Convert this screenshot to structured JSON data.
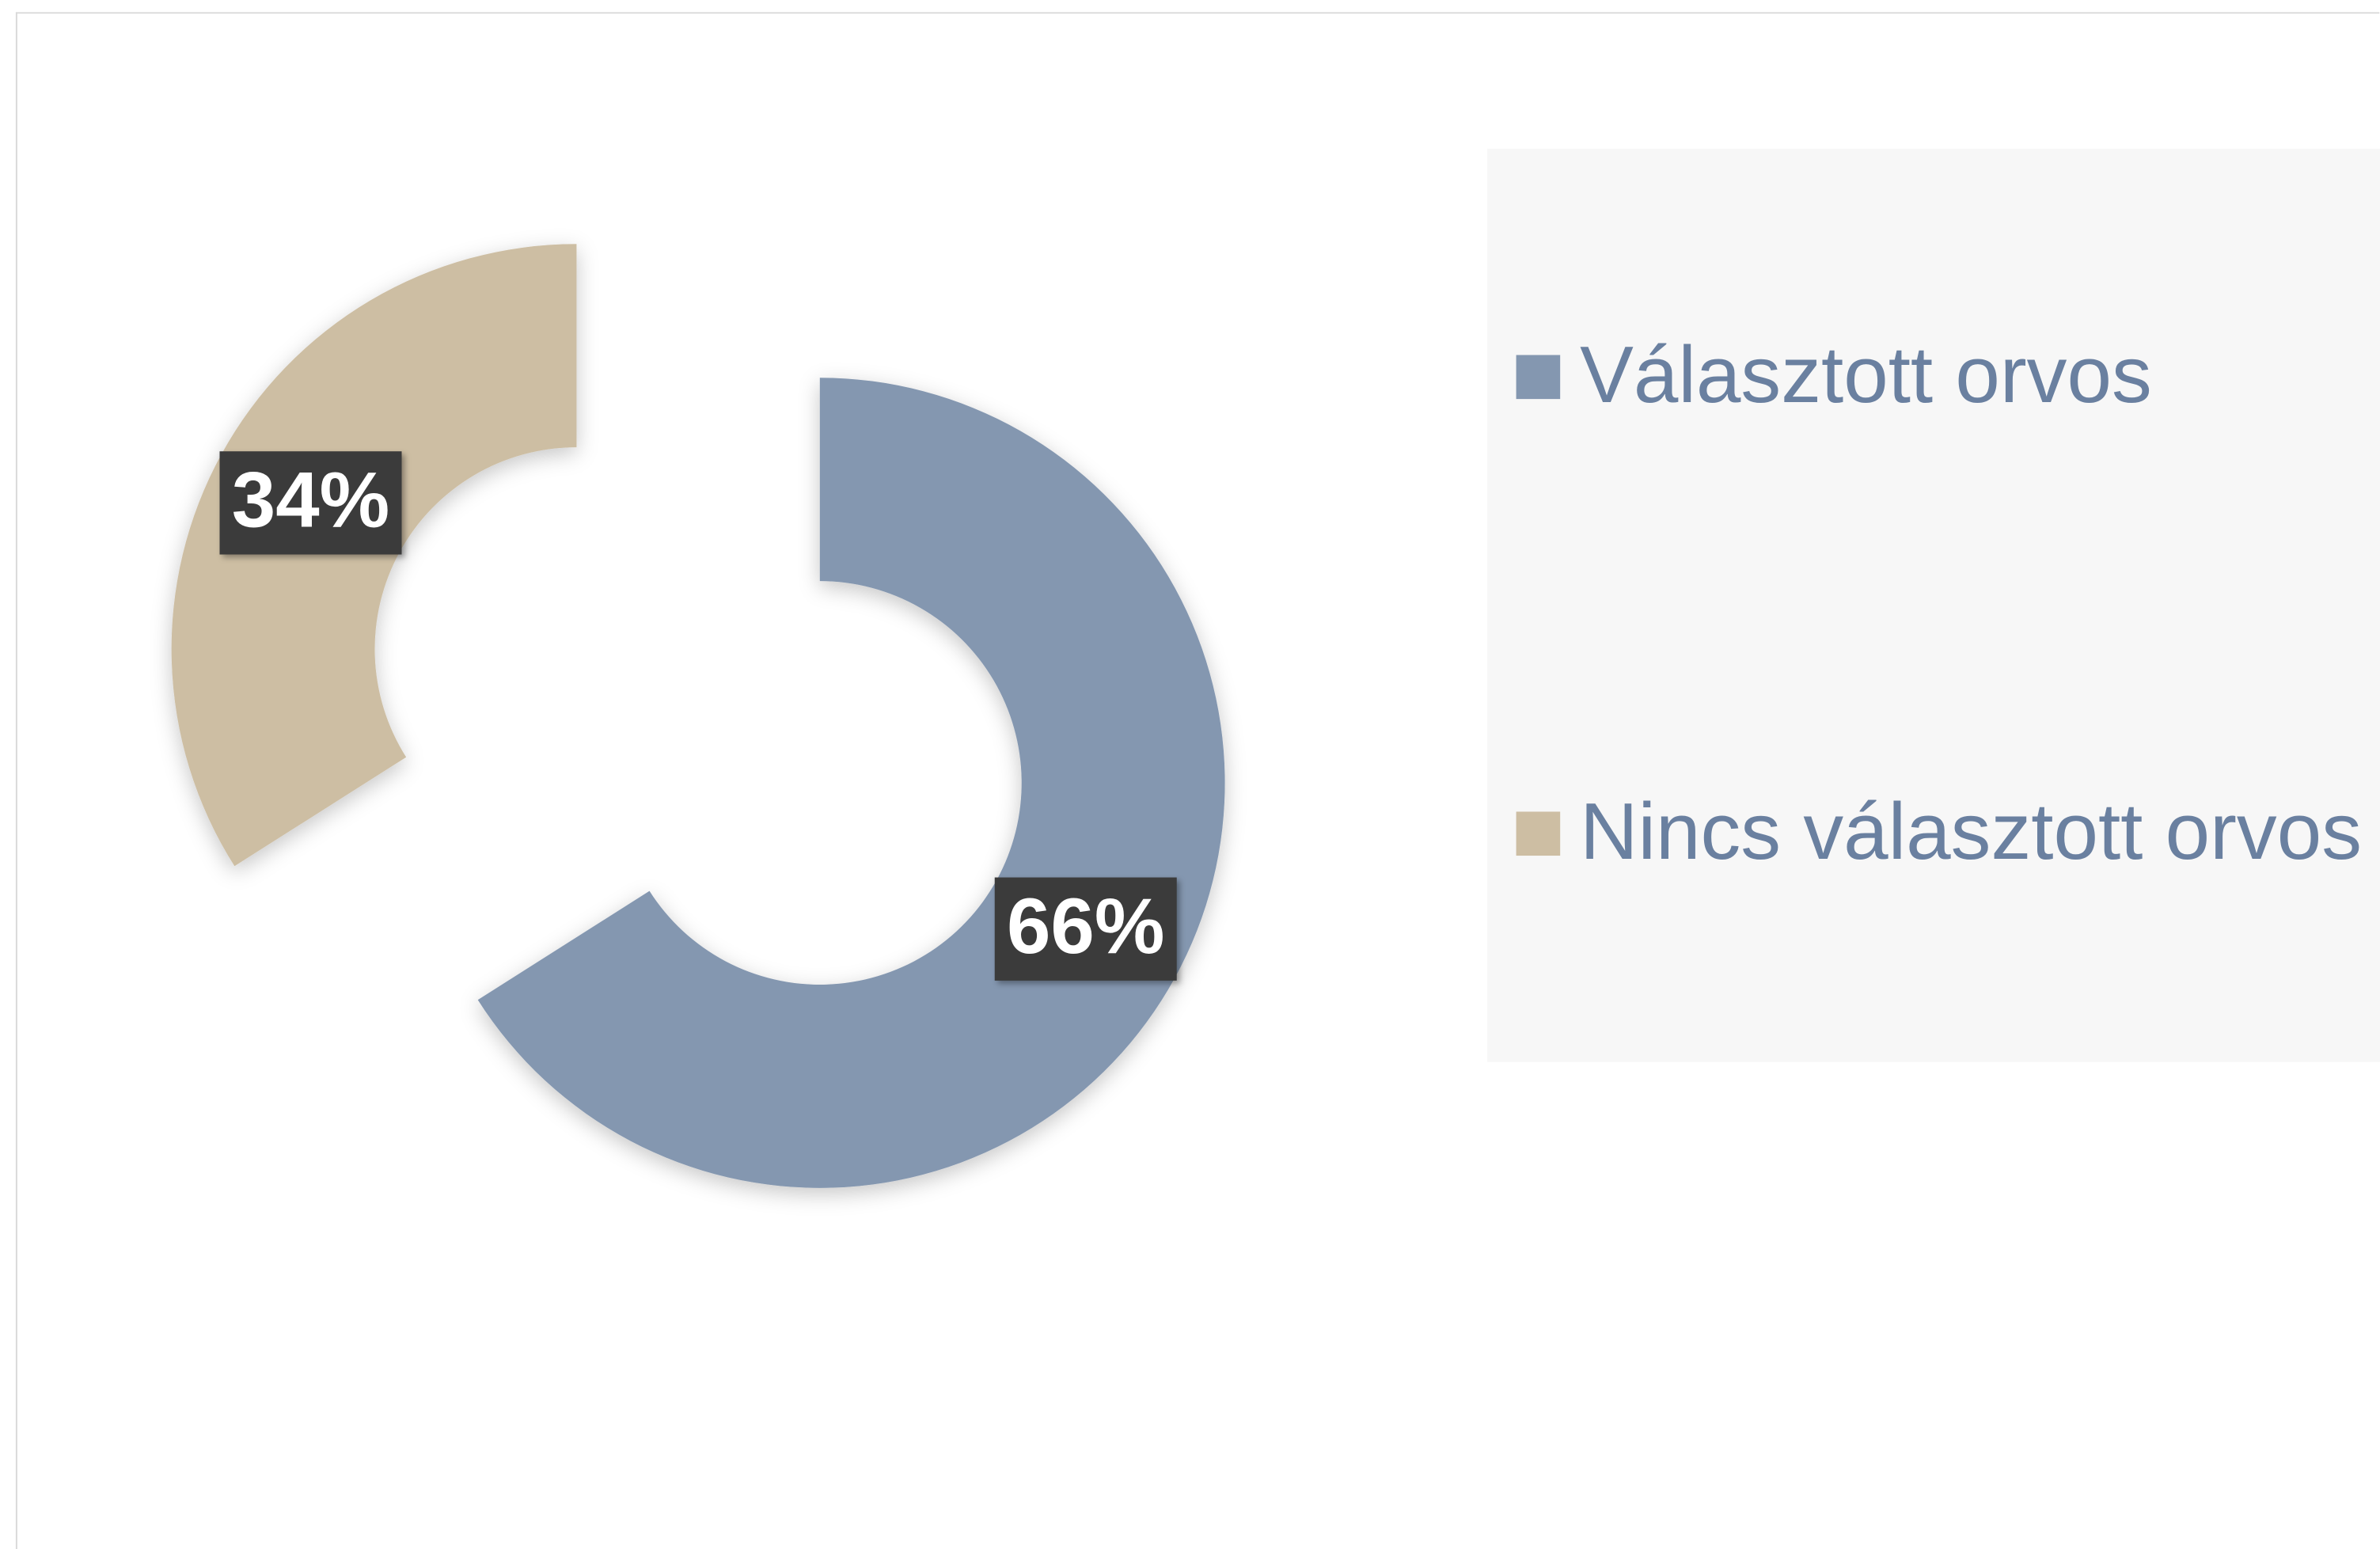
{
  "chart_data": {
    "type": "donut",
    "categories": [
      "Választott orvos",
      "Nincs választott orvos"
    ],
    "values": [
      66,
      34
    ],
    "value_labels": [
      "66%",
      "34%"
    ],
    "colors": [
      "#8497b0",
      "#cdbea3"
    ],
    "legend": "right"
  }
}
